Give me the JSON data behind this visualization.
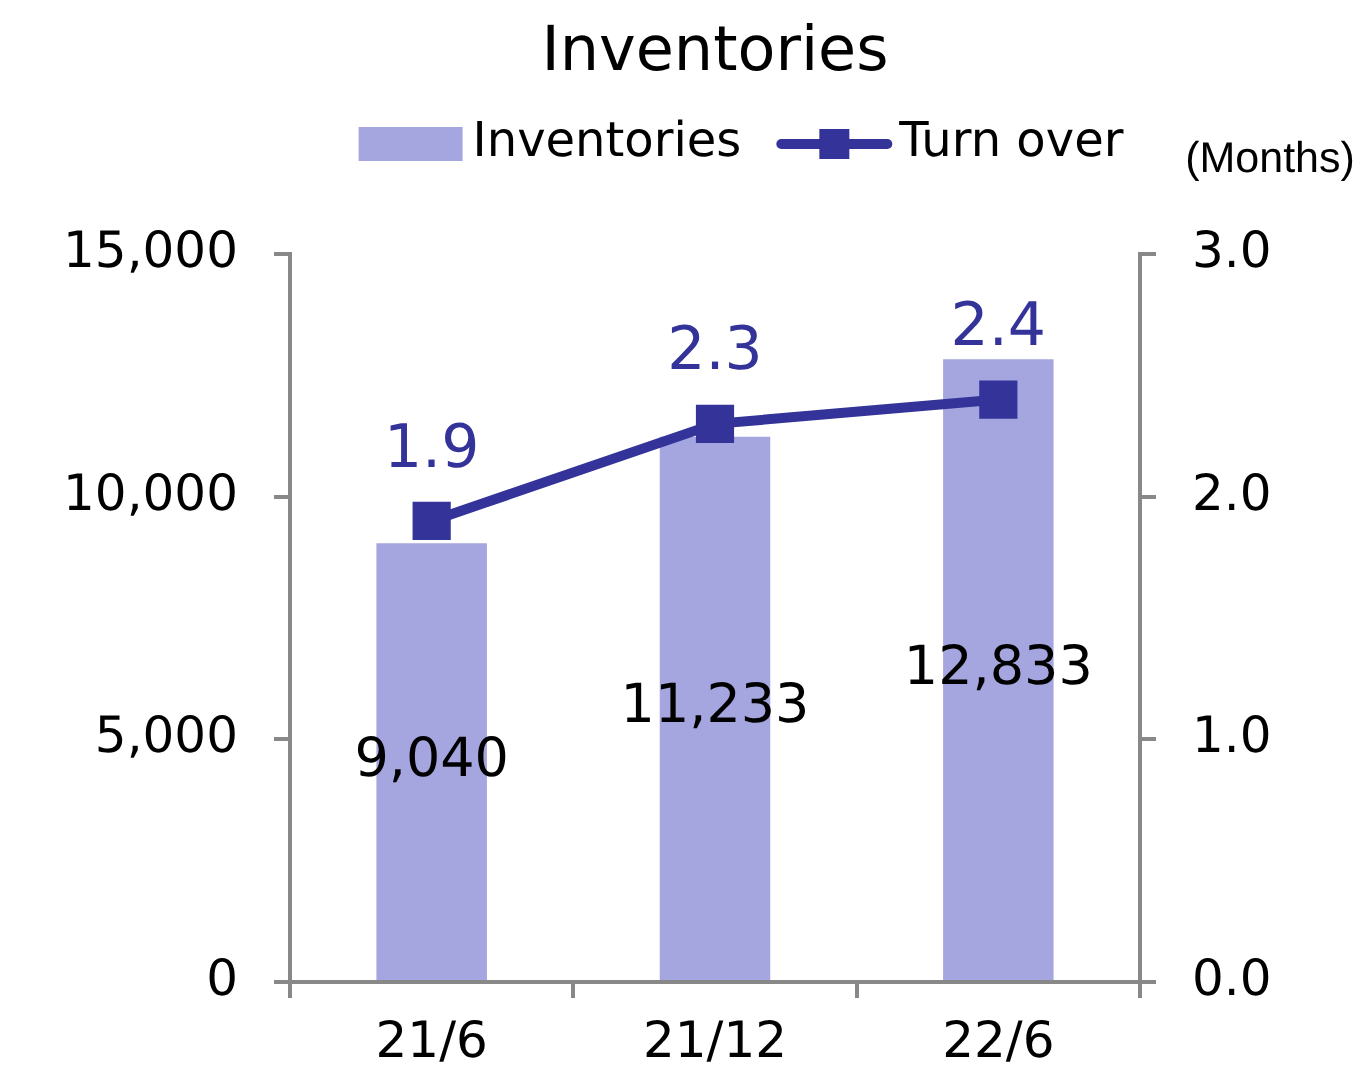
{
  "chart_data": {
    "type": "bar",
    "title": "Inventories",
    "y2label": "(Months)",
    "categories": [
      "21/6",
      "21/12",
      "22/6"
    ],
    "series": [
      {
        "name": "Inventories",
        "color": "#a5a5df",
        "values": [
          9040,
          11233,
          12833
        ],
        "value_labels": [
          "9,040",
          "11,233",
          "12,833"
        ]
      },
      {
        "type": "line",
        "name": "Turn over",
        "color": "#333399",
        "axis": "y2",
        "marker": "square",
        "values": [
          1.9,
          2.3,
          2.4
        ],
        "value_labels": [
          "1.9",
          "2.3",
          "2.4"
        ]
      }
    ],
    "ylim": [
      0,
      15000
    ],
    "yticks": [
      0,
      {
        "value": 5000,
        "label": "5,000"
      },
      {
        "value": 10000,
        "label": "10,000"
      },
      {
        "value": 15000,
        "label": "15,000"
      }
    ],
    "y2lim": [
      0,
      3
    ],
    "y2ticks": [
      {
        "value": 0,
        "label": "0.0"
      },
      {
        "value": 1,
        "label": "1.0"
      },
      {
        "value": 2,
        "label": "2.0"
      },
      {
        "value": 3,
        "label": "3.0"
      }
    ],
    "grid": false,
    "legend": "top"
  }
}
